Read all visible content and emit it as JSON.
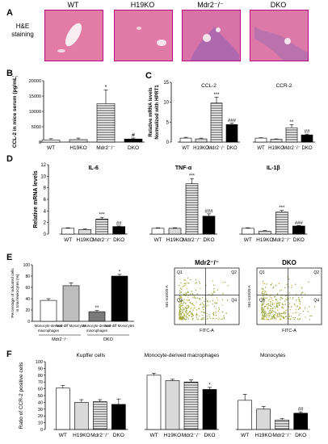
{
  "figure": {
    "panelA": {
      "letter": "A",
      "row_label_1": "H&E",
      "row_label_2": "staining",
      "columns": [
        "WT",
        "H19KO",
        "Mdr2⁻/⁻",
        "DKO"
      ]
    },
    "panelB": {
      "letter": "B",
      "ylabel": "CCL-2 in mice serum (pg/mL)",
      "colors": {
        "WT": "#ffffff",
        "H19KO": "#dddddd",
        "Mdr2": "#ffffff",
        "DKO": "#000000"
      }
    },
    "panelC": {
      "letter": "C",
      "ylabel_1": "Relative mRNA levels",
      "ylabel_2": "Normalized with HPRT1",
      "group_labels": [
        "CCL-2",
        "CCR-2"
      ]
    },
    "panelD": {
      "letter": "D",
      "ylabel": "Relative mRNA levels",
      "group_labels": [
        "IL-6",
        "TNF-α",
        "IL-1β"
      ]
    },
    "panelE": {
      "letter": "E",
      "ylabel_1": "Percentage of indicated cells",
      "ylabel_2": "in total leukocytes (%)",
      "bar_labels": [
        "Monocyte-derived macrophages",
        "Non-diff Monocytes",
        "Monocyte-derived macrophages",
        "Non-diff Monocytes"
      ],
      "group_labels": [
        "Mdr2⁻/⁻",
        "DKO"
      ],
      "flow_titles": [
        "Mdr2⁻/⁻",
        "DKO"
      ],
      "flow_xaxis": "FITC-A",
      "flow_yaxis": "561-610/20-A",
      "quadrants": [
        "Q1",
        "Q2",
        "Q3",
        "Q4"
      ]
    },
    "panelF": {
      "letter": "F",
      "ylabel_1": "Ratio of CCR-2 positive cells",
      "group_titles": [
        "Kupffer cells",
        "Monocyte-derived macrophages",
        "Monocytes"
      ]
    },
    "xcats": [
      "WT",
      "H19KO",
      "Mdr2⁻/⁻",
      "DKO"
    ]
  },
  "chart_data": [
    {
      "type": "bar",
      "id": "B",
      "categories": [
        "WT",
        "H19KO",
        "Mdr2⁻/⁻",
        "DKO"
      ],
      "values": [
        700,
        800,
        12500,
        1000
      ],
      "errors": [
        400,
        500,
        4500,
        300
      ],
      "significance": [
        "",
        "",
        "*",
        "#"
      ],
      "ylim": [
        0,
        20000
      ],
      "yticks": [
        0,
        5000,
        10000,
        15000,
        20000
      ],
      "ylabel": "CCL-2 in mice serum (pg/mL)"
    },
    {
      "type": "bar",
      "id": "C",
      "groups": [
        "CCL-2",
        "CCR-2"
      ],
      "categories": [
        "WT",
        "H19KO",
        "Mdr2⁻/⁻",
        "DKO"
      ],
      "series": [
        {
          "name": "CCL-2",
          "values": [
            1.0,
            0.8,
            9.8,
            4.4
          ],
          "errors": [
            0.2,
            0.2,
            1.5,
            0.4
          ],
          "significance": [
            "",
            "",
            "***",
            "###"
          ]
        },
        {
          "name": "CCR-2",
          "values": [
            1.0,
            0.7,
            3.6,
            1.8
          ],
          "errors": [
            0.1,
            0.1,
            0.8,
            0.2
          ],
          "significance": [
            "",
            "",
            "**",
            "##"
          ]
        }
      ],
      "ylim": [
        0,
        15
      ],
      "yticks": [
        0,
        5,
        10,
        15
      ]
    },
    {
      "type": "bar",
      "id": "D",
      "groups": [
        "IL-6",
        "TNF-α",
        "IL-1β"
      ],
      "categories": [
        "WT",
        "H19KO",
        "Mdr2⁻/⁻",
        "DKO"
      ],
      "series": [
        {
          "name": "IL-6",
          "values": [
            1.0,
            0.8,
            2.6,
            1.3
          ],
          "errors": [
            0.1,
            0.1,
            0.3,
            0.1
          ],
          "significance": [
            "",
            "",
            "***",
            "##"
          ]
        },
        {
          "name": "TNF-α",
          "values": [
            1.0,
            1.0,
            8.7,
            3.1
          ],
          "errors": [
            0.1,
            0.1,
            0.9,
            0.4
          ],
          "significance": [
            "",
            "",
            "***",
            "###"
          ]
        },
        {
          "name": "IL-1β",
          "values": [
            1.0,
            0.5,
            3.8,
            1.4
          ],
          "errors": [
            0.1,
            0.1,
            0.3,
            0.1
          ],
          "significance": [
            "",
            "",
            "***",
            "###"
          ]
        }
      ],
      "ylim": [
        0,
        12
      ],
      "yticks": [
        0,
        2,
        4,
        6,
        8,
        10,
        12
      ]
    },
    {
      "type": "bar",
      "id": "E",
      "categories": [
        "Monocyte-derived macrophages",
        "Non-diff Monocytes",
        "Monocyte-derived macrophages",
        "Non-diff Monocytes"
      ],
      "values": [
        37,
        63,
        17,
        80
      ],
      "errors": [
        3,
        5,
        2,
        3
      ],
      "significance": [
        "",
        "",
        "**",
        "*"
      ],
      "ylim": [
        0,
        100
      ],
      "yticks": [
        0,
        20,
        40,
        60,
        80,
        100
      ]
    },
    {
      "type": "bar",
      "id": "F",
      "groups": [
        "Kupffer cells",
        "Monocyte-derived macrophages",
        "Monocytes"
      ],
      "categories": [
        "WT",
        "H19KO",
        "Mdr2⁻/⁻",
        "DKO"
      ],
      "series": [
        {
          "name": "Kupffer cells",
          "values": [
            61,
            40,
            41,
            37
          ],
          "errors": [
            4,
            4,
            3,
            8
          ],
          "significance": [
            "",
            "",
            "",
            ""
          ]
        },
        {
          "name": "Monocyte-derived macrophages",
          "values": [
            80,
            72,
            70,
            59
          ],
          "errors": [
            3,
            2,
            3,
            3
          ],
          "significance": [
            "",
            "",
            "",
            "*"
          ]
        },
        {
          "name": "Monocytes",
          "values": [
            43,
            30,
            14,
            24
          ],
          "errors": [
            9,
            4,
            2,
            2
          ],
          "significance": [
            "",
            "",
            "",
            "##"
          ]
        }
      ],
      "ylim": [
        0,
        100
      ],
      "yticks": [
        0,
        10,
        20,
        30,
        40,
        50,
        60,
        70,
        80,
        90,
        100
      ]
    }
  ]
}
